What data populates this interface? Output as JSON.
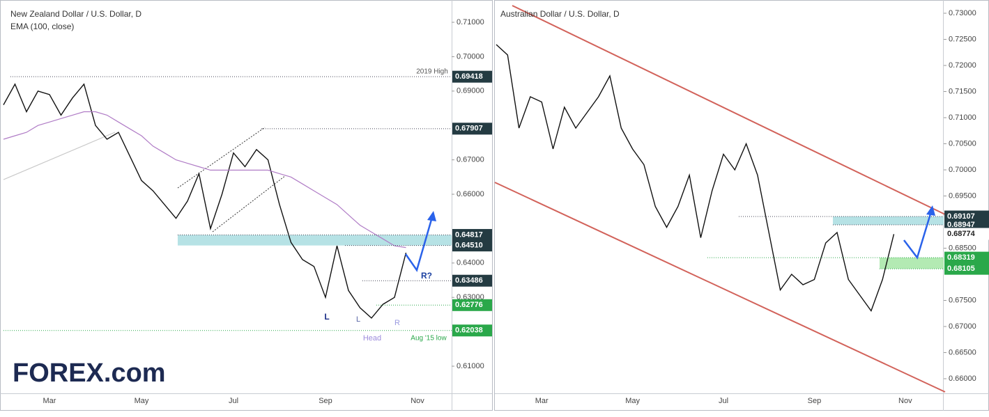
{
  "chart_data": [
    {
      "type": "line",
      "title": "New Zealand Dollar / U.S. Dollar, D",
      "categories": [
        null,
        null,
        null,
        null,
        "Mar",
        null,
        null,
        null,
        null,
        null,
        null,
        null,
        "May",
        null,
        null,
        null,
        null,
        null,
        null,
        null,
        "Jul",
        null,
        null,
        null,
        null,
        null,
        null,
        null,
        "Sep",
        null,
        null,
        null,
        null,
        null,
        null,
        null,
        "Nov",
        null,
        null,
        null
      ],
      "series": [
        {
          "color": "#111111",
          "values": [
            0.686,
            0.692,
            0.684,
            0.69,
            0.689,
            0.683,
            0.688,
            0.692,
            0.68,
            0.676,
            0.678,
            0.671,
            0.664,
            0.661,
            0.657,
            0.653,
            0.658,
            0.666,
            0.65,
            0.66,
            0.672,
            0.668,
            0.673,
            0.67,
            0.657,
            0.646,
            0.641,
            0.639,
            0.63,
            0.645,
            0.632,
            0.627,
            0.624,
            0.628,
            0.63,
            0.643,
            null,
            null,
            null,
            null
          ]
        },
        {
          "name": "EMA (100, close)",
          "color": "#b07cc6",
          "values": [
            0.676,
            0.677,
            0.678,
            0.68,
            0.681,
            0.682,
            0.683,
            0.684,
            0.684,
            0.683,
            0.681,
            0.679,
            0.677,
            0.674,
            0.672,
            0.67,
            0.669,
            0.668,
            0.667,
            0.667,
            0.667,
            0.667,
            0.667,
            0.667,
            0.666,
            0.665,
            0.663,
            0.661,
            0.659,
            0.657,
            0.654,
            0.651,
            0.649,
            0.647,
            0.645,
            0.6445,
            null,
            null,
            null,
            null
          ]
        }
      ],
      "ylim": [
        0.60211,
        0.71547
      ],
      "yticks": [
        {
          "value": 0.61,
          "label": "0.61000"
        },
        {
          "value": 0.63,
          "label": "0.63000"
        },
        {
          "value": 0.64,
          "label": "0.64000"
        },
        {
          "value": 0.66,
          "label": "0.66000"
        },
        {
          "value": 0.67,
          "label": "0.67000"
        },
        {
          "value": 0.69,
          "label": "0.69000"
        },
        {
          "value": 0.7,
          "label": "0.70000"
        },
        {
          "value": 0.71,
          "label": "0.71000"
        }
      ],
      "grid": false,
      "levels": [
        {
          "value": 0.69418,
          "color": "#243b42"
        },
        {
          "value": 0.67907,
          "color": "#243b42"
        },
        {
          "value": 0.64817,
          "color": "#243b42"
        },
        {
          "value": 0.6451,
          "label": "0.64510",
          "color": "#243b42"
        },
        {
          "value": 0.63486,
          "color": "#243b42"
        },
        {
          "value": 0.62776,
          "color": "#2aa84a"
        },
        {
          "value": 0.62038,
          "color": "#2aa84a"
        }
      ],
      "annotations": [
        "2019 High",
        "L",
        "L",
        "R",
        "Head",
        "R?",
        "Aug '15 low"
      ]
    },
    {
      "type": "line",
      "title": "Australian Dollar / U.S. Dollar, D",
      "categories": [
        null,
        null,
        null,
        null,
        "Mar",
        null,
        null,
        null,
        null,
        null,
        null,
        null,
        "May",
        null,
        null,
        null,
        null,
        null,
        null,
        null,
        "Jul",
        null,
        null,
        null,
        null,
        null,
        null,
        null,
        "Sep",
        null,
        null,
        null,
        null,
        null,
        null,
        null,
        "Nov",
        null,
        null,
        null
      ],
      "series": [
        {
          "color": "#111111",
          "values": [
            0.724,
            0.722,
            0.708,
            0.714,
            0.713,
            0.704,
            0.712,
            0.708,
            0.711,
            0.714,
            0.718,
            0.708,
            0.704,
            0.701,
            0.693,
            0.689,
            0.693,
            0.699,
            0.687,
            0.696,
            0.703,
            0.7,
            0.705,
            0.699,
            0.688,
            0.677,
            0.68,
            0.678,
            0.679,
            0.686,
            0.688,
            0.679,
            0.676,
            0.673,
            0.679,
            0.6877,
            null,
            null,
            null,
            null
          ]
        }
      ],
      "ylim": [
        0.6572,
        0.73187
      ],
      "yticks": [
        {
          "value": 0.66,
          "label": "0.66000"
        },
        {
          "value": 0.665,
          "label": "0.66500"
        },
        {
          "value": 0.67,
          "label": "0.67000"
        },
        {
          "value": 0.675,
          "label": "0.67500"
        },
        {
          "value": 0.685,
          "label": "0.68500"
        },
        {
          "value": 0.695,
          "label": "0.69500"
        },
        {
          "value": 0.7,
          "label": "0.70000"
        },
        {
          "value": 0.705,
          "label": "0.70500"
        },
        {
          "value": 0.71,
          "label": "0.71000"
        },
        {
          "value": 0.715,
          "label": "0.71500"
        },
        {
          "value": 0.72,
          "label": "0.72000"
        },
        {
          "value": 0.725,
          "label": "0.72500"
        },
        {
          "value": 0.73,
          "label": "0.73000"
        }
      ],
      "grid": false,
      "levels": [
        {
          "value": 0.69107,
          "color": "#243b42"
        },
        {
          "value": 0.68947,
          "color": "#243b42"
        },
        {
          "value": 0.68774,
          "color": "#ffffff"
        },
        {
          "value": 0.68319,
          "color": "#2aa84a"
        },
        {
          "value": 0.68105,
          "color": "#2aa84a"
        }
      ],
      "annotations": []
    }
  ],
  "logo": "FOREX.com"
}
